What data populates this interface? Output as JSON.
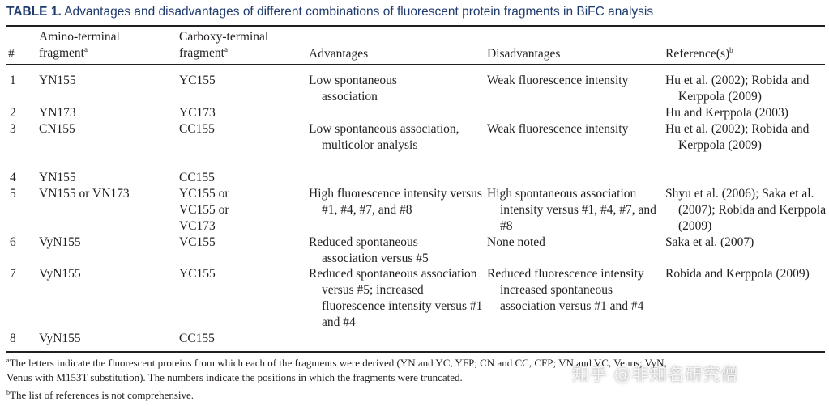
{
  "caption": {
    "label": "TABLE 1.",
    "text": "Advantages and disadvantages of different combinations of fluorescent protein fragments in BiFC analysis"
  },
  "headers": {
    "num": "#",
    "amino": "Amino-terminal",
    "amino2": "fragment",
    "carboxy": "Carboxy-terminal",
    "carboxy2": "fragment",
    "sup_a": "a",
    "advantages": "Advantages",
    "disadvantages": "Disadvantages",
    "refs": "Reference(s)",
    "sup_b": "b"
  },
  "rows": [
    {
      "num": "1",
      "amino": "YN155",
      "carboxy": "YC155",
      "adv": "Low spontaneous association",
      "dis": "Weak fluorescence intensity",
      "ref": "Hu et al. (2002); Robida and Kerppola (2009)"
    },
    {
      "num": "2",
      "amino": "YN173",
      "carboxy": "YC173",
      "adv": "",
      "dis": "",
      "ref": "Hu and Kerppola (2003)"
    },
    {
      "num": "3",
      "amino": "CN155",
      "carboxy": "CC155",
      "adv": "Low spontaneous association, multicolor analysis",
      "dis": "Weak fluorescence intensity",
      "ref": "Hu et al. (2002); Robida and Kerppola (2009)"
    },
    {
      "num": "4",
      "amino": "YN155",
      "carboxy": "CC155",
      "adv": "",
      "dis": "",
      "ref": ""
    },
    {
      "num": "5",
      "amino": "VN155 or VN173",
      "carboxy": "YC155 or VC155 or VC173",
      "adv": "High fluorescence intensity versus #1, #4, #7, and #8",
      "dis": "High spontaneous association intensity versus #1, #4, #7, and #8",
      "ref": "Shyu et al. (2006); Saka et al. (2007); Robida and Kerppola (2009)"
    },
    {
      "num": "6",
      "amino": "VyN155",
      "carboxy": "VC155",
      "adv": "Reduced spontaneous association versus #5",
      "dis": "None noted",
      "ref": "Saka et al. (2007)"
    },
    {
      "num": "7",
      "amino": "VyN155",
      "carboxy": "YC155",
      "adv": "Reduced spontaneous association versus #5; increased fluorescence intensity versus #1 and #4",
      "dis": "Reduced fluorescence intensity increased spontaneous association versus #1 and #4",
      "ref": "Robida and Kerppola (2009)"
    },
    {
      "num": "8",
      "amino": "VyN155",
      "carboxy": "CC155",
      "adv": "",
      "dis": "",
      "ref": ""
    }
  ],
  "footnotes": {
    "a_mark": "a",
    "a_text_1": "The letters indicate the fluorescent proteins from which each of the fragments were derived (YN and YC, YFP; CN and CC, CFP; VN and VC, Venus; VyN,",
    "a_text_2": "Venus with M153T substitution). The numbers indicate the positions in which the fragments were truncated.",
    "b_mark": "b",
    "b_text": "The list of references is not comprehensive."
  },
  "watermark": {
    "text": "知乎 @非知名研究僧"
  }
}
